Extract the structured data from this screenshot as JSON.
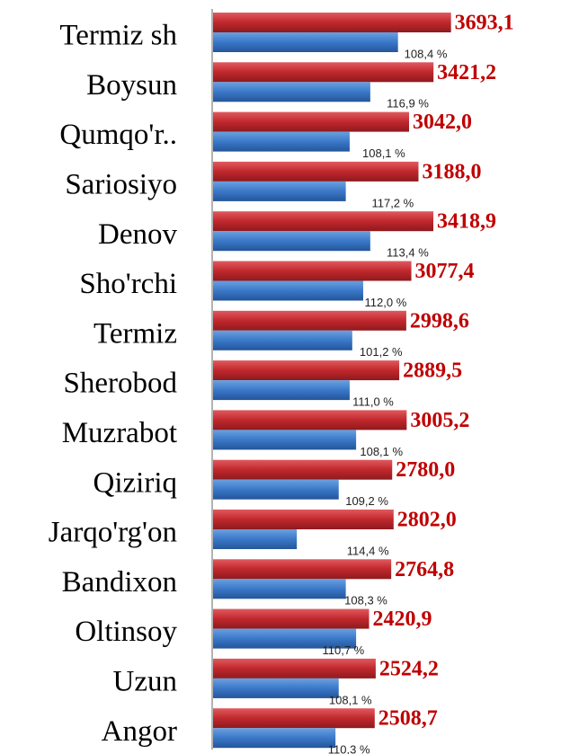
{
  "chart_data": {
    "type": "hbar",
    "categories": [
      "Termiz sh",
      "Boysun",
      "Qumqo'r..",
      "Sariosiyo",
      "Denov",
      "Sho'rchi",
      "Termiz",
      "Sherobod",
      "Muzrabot",
      "Qiziriq",
      "Jarqo'rg'on",
      "Bandixon",
      "Oltinsoy",
      "Uzun",
      "Angor"
    ],
    "series": [
      {
        "color": "#c0282d",
        "values": [
          3693.1,
          3421.2,
          3042.0,
          3188.0,
          3418.9,
          3077.4,
          2998.6,
          2889.5,
          3005.2,
          2780.0,
          2802.0,
          2764.8,
          2420.9,
          2524.2,
          2508.7
        ],
        "value_labels": [
          "3693,1",
          "3421,2",
          "3042,0",
          "3188,0",
          "3418,9",
          "3077,4",
          "2998,6",
          "2889,5",
          "3005,2",
          "2780,0",
          "2802,0",
          "2764,8",
          "2420,9",
          "2524,2",
          "2508,7"
        ]
      },
      {
        "color": "#3a78c8",
        "values": [
          2870,
          2440,
          2120,
          2060,
          2440,
          2330,
          2160,
          2120,
          2220,
          1950,
          1300,
          2060,
          2220,
          1950,
          1900
        ]
      }
    ],
    "growth_labels": [
      "108,4 %",
      "116,9 %",
      "108,1 %",
      "117,2 %",
      "113,4 %",
      "112,0 %",
      "101,2 %",
      "111,0 %",
      "108,1 %",
      "109,2 %",
      "114,4 %",
      "108,3 %",
      "110,7 %",
      "108,1 %",
      "110,3 %"
    ],
    "xlim": [
      0,
      5400
    ]
  }
}
